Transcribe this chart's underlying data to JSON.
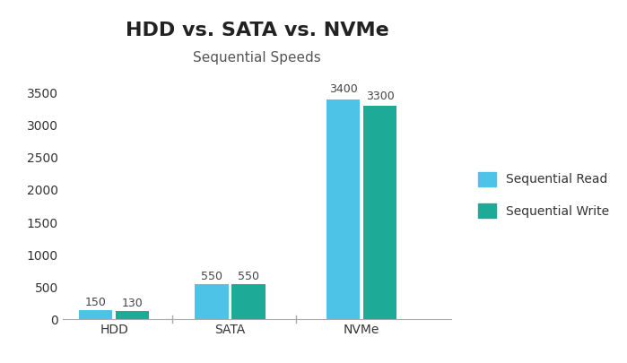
{
  "title": "HDD vs. SATA vs. NVMe",
  "subtitle": "Sequential Speeds",
  "categories": [
    "HDD",
    "SATA",
    "NVMe"
  ],
  "read_values": [
    150,
    550,
    3400
  ],
  "write_values": [
    130,
    550,
    3300
  ],
  "read_color": "#4DC3E8",
  "write_color": "#1DAA96",
  "ylim": [
    0,
    3700
  ],
  "yticks": [
    0,
    500,
    1000,
    1500,
    2000,
    2500,
    3000,
    3500
  ],
  "bar_width": 0.28,
  "legend_read": "Sequential Read",
  "legend_write": "Sequential Write",
  "title_fontsize": 16,
  "subtitle_fontsize": 11,
  "tick_fontsize": 10,
  "legend_fontsize": 10,
  "bg_color": "#FFFFFF",
  "divider_color": "#AAAAAA",
  "annotation_fontsize": 9,
  "group_centers": [
    0.28,
    1.25,
    2.35
  ],
  "xlim": [
    -0.15,
    3.1
  ]
}
